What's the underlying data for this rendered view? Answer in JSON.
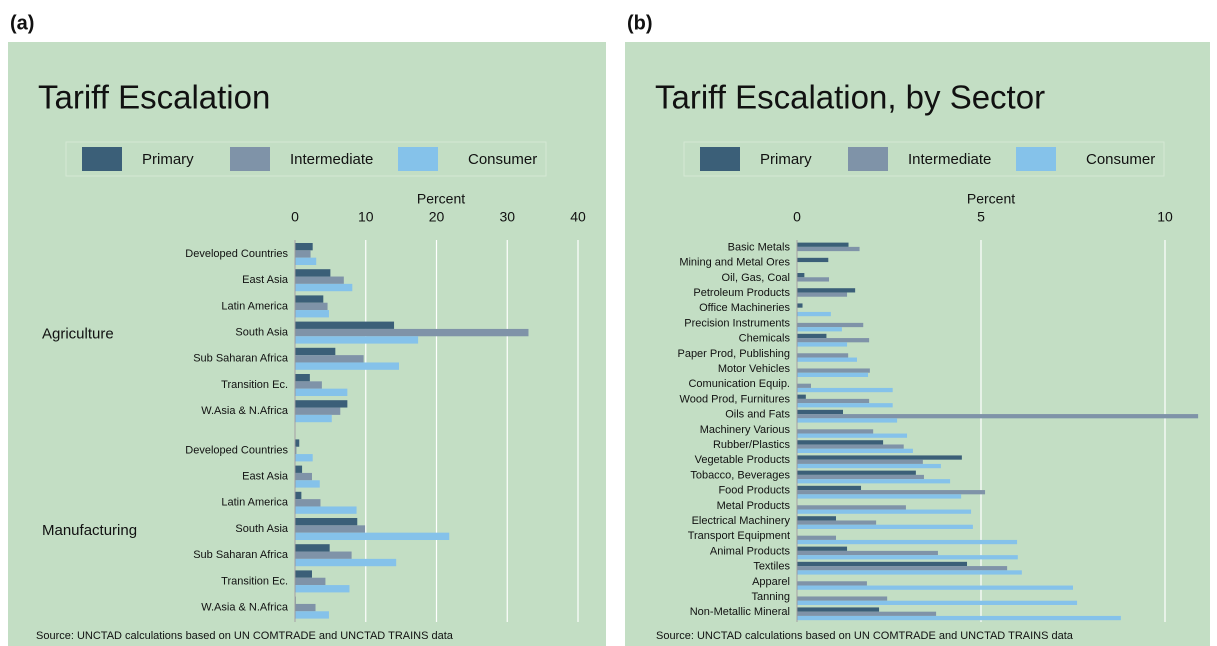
{
  "chart_data": [
    {
      "type": "grouped-hbar",
      "label": "(a)",
      "title": "Tariff Escalation",
      "xlabel": "Percent",
      "source": "Source: UNCTAD calculations based on UN COMTRADE and UNCTAD TRAINS data",
      "groups": [
        {
          "name": "Agriculture",
          "categories": [
            "Developed Countries",
            "East Asia",
            "Latin America",
            "South Asia",
            "Sub Saharan Africa",
            "Transition Ec.",
            "W.Asia & N.Africa"
          ]
        },
        {
          "name": "Manufacturing",
          "categories": [
            "Developed Countries",
            "East Asia",
            "Latin America",
            "South Asia",
            "Sub Saharan Africa",
            "Transition Ec.",
            "W.Asia & N.Africa"
          ]
        }
      ],
      "series": [
        {
          "name": "Primary",
          "color": "#3b5f78",
          "values": [
            2.5,
            5.0,
            4.0,
            14.0,
            5.7,
            2.1,
            7.4,
            0.6,
            1.0,
            0.9,
            8.8,
            4.9,
            2.4,
            0.1
          ]
        },
        {
          "name": "Intermediate",
          "color": "#7f93a8",
          "values": [
            2.2,
            6.9,
            4.6,
            33.0,
            9.7,
            3.8,
            6.4,
            0.2,
            2.4,
            3.6,
            9.9,
            8.0,
            4.3,
            2.9
          ]
        },
        {
          "name": "Consumer",
          "color": "#85c2ea",
          "values": [
            3.0,
            8.1,
            4.8,
            17.4,
            14.7,
            7.4,
            5.2,
            2.5,
            3.5,
            8.7,
            21.8,
            14.3,
            7.7,
            4.8
          ]
        }
      ],
      "xlim": [
        0,
        40
      ],
      "xticks": [
        0,
        10,
        20,
        30,
        40
      ],
      "grid": true
    },
    {
      "type": "hbar",
      "label": "(b)",
      "title": "Tariff Escalation, by Sector",
      "xlabel": "Percent",
      "source": "Source: UNCTAD calculations based on UN COMTRADE and UNCTAD TRAINS data",
      "categories": [
        "Basic Metals",
        "Mining and Metal Ores",
        "Oil, Gas, Coal",
        "Petroleum Products",
        "Office Machineries",
        "Precision Instruments",
        "Chemicals",
        "Paper Prod, Publishing",
        "Motor Vehicles",
        "Comunication Equip.",
        "Wood Prod, Furnitures",
        "Oils and Fats",
        "Machinery Various",
        "Rubber/Plastics",
        "Vegetable Products",
        "Tobacco, Beverages",
        "Food Products",
        "Metal Products",
        "Electrical Machinery",
        "Transport Equipment",
        "Animal Products",
        "Textiles",
        "Apparel",
        "Tanning",
        "Non-Metallic Mineral"
      ],
      "series": [
        {
          "name": "Primary",
          "color": "#3b5f78",
          "values": [
            1.4,
            0.85,
            0.2,
            1.58,
            0.15,
            null,
            0.8,
            null,
            null,
            null,
            0.24,
            1.25,
            null,
            2.34,
            4.48,
            3.23,
            1.74,
            null,
            1.06,
            null,
            1.36,
            4.62,
            null,
            null,
            2.23
          ]
        },
        {
          "name": "Intermediate",
          "color": "#7f93a8",
          "values": [
            1.7,
            null,
            0.87,
            1.36,
            null,
            1.8,
            1.96,
            1.39,
            1.98,
            0.38,
            1.96,
            10.9,
            2.07,
            2.9,
            3.42,
            3.45,
            5.11,
            2.96,
            2.15,
            1.06,
            3.83,
            5.71,
            1.9,
            2.45,
            3.78
          ]
        },
        {
          "name": "Consumer",
          "color": "#85c2ea",
          "values": [
            null,
            null,
            null,
            null,
            0.92,
            1.22,
            1.36,
            1.63,
            1.93,
            2.6,
            2.6,
            2.72,
            2.99,
            3.15,
            3.91,
            4.16,
            4.46,
            4.73,
            4.78,
            5.98,
            6.0,
            6.11,
            7.5,
            7.61,
            8.8
          ]
        }
      ],
      "xlim": [
        0,
        10
      ],
      "xticks": [
        0,
        5,
        10
      ],
      "grid": true
    }
  ]
}
